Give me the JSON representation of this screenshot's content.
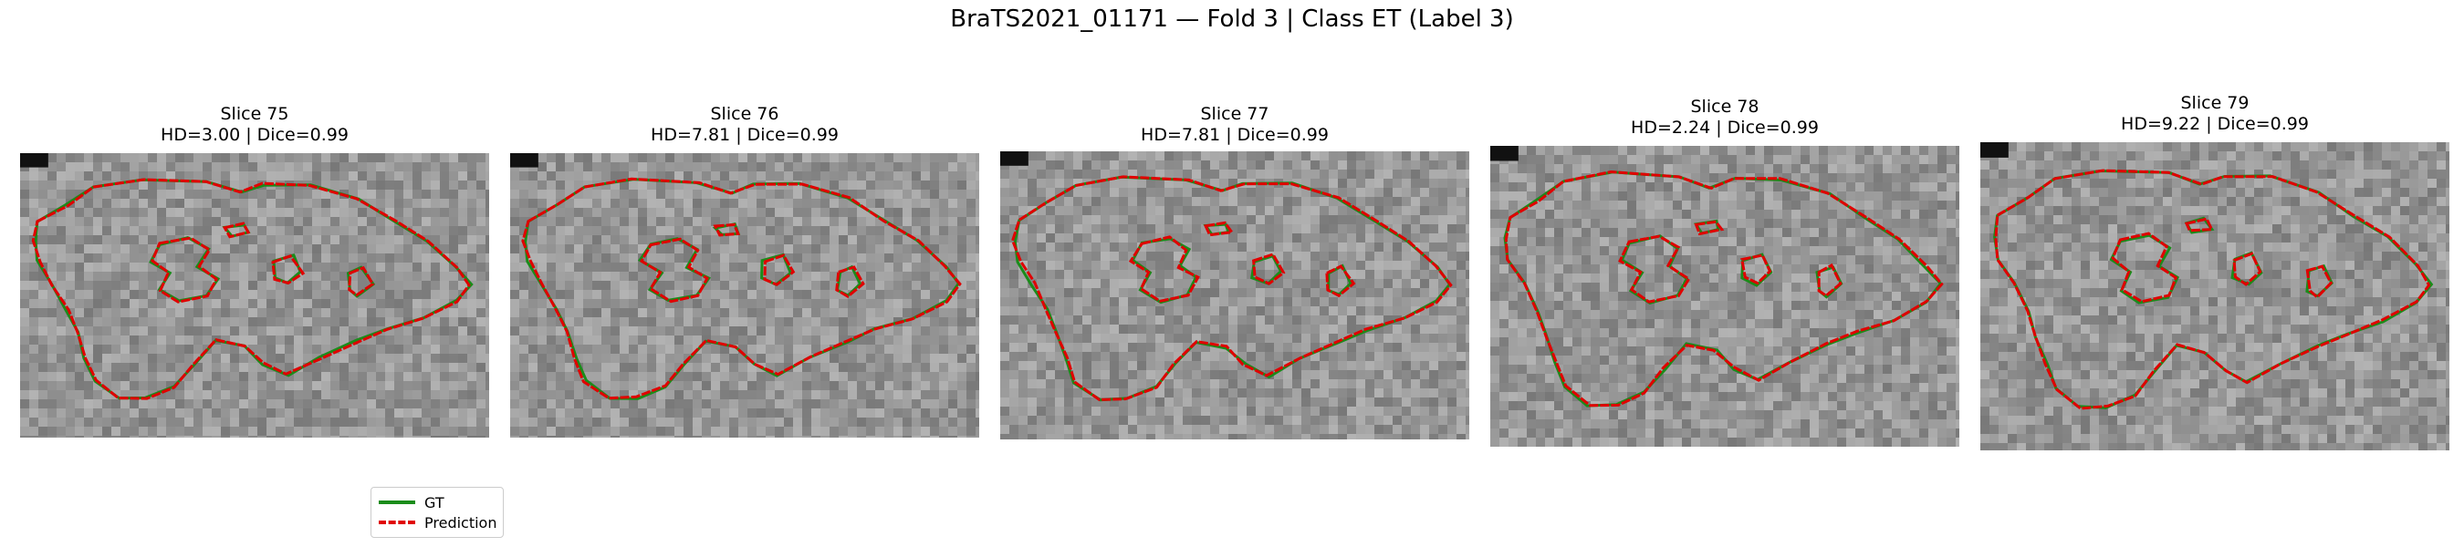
{
  "figure": {
    "suptitle": "BraTS2021_01171 — Fold 3 | Class ET (Label 3)"
  },
  "panels": [
    {
      "slice": "Slice 75",
      "metrics": "HD=3.00 | Dice=0.99"
    },
    {
      "slice": "Slice 76",
      "metrics": "HD=7.81 | Dice=0.99"
    },
    {
      "slice": "Slice 77",
      "metrics": "HD=7.81 | Dice=0.99"
    },
    {
      "slice": "Slice 78",
      "metrics": "HD=2.24 | Dice=0.99"
    },
    {
      "slice": "Slice 79",
      "metrics": "HD=9.22 | Dice=0.99"
    }
  ],
  "legend": {
    "gt_label": "GT",
    "pred_label": "Prediction"
  },
  "colors": {
    "gt": "#1a8c1a",
    "prediction": "#e00000",
    "background": "#ffffff"
  }
}
